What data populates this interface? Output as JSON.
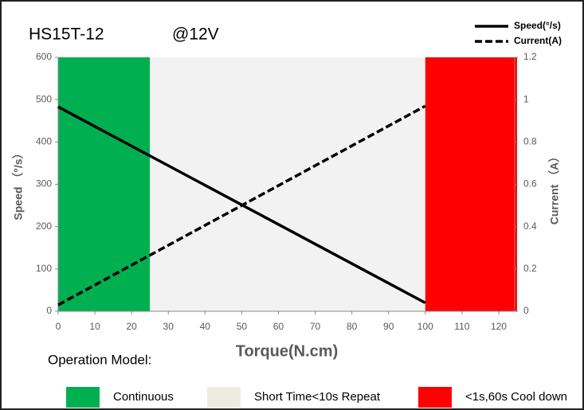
{
  "chart_data": {
    "type": "line",
    "title": "HS15T-12",
    "subtitle": "@12V",
    "x_label": "Torque(N.cm)",
    "y_label": "Speed （°/s）",
    "y2_label": "Current （A）",
    "x": [
      0,
      100
    ],
    "series": [
      {
        "name": "Speed(°/s)",
        "color": "#000000",
        "dashed": false,
        "values": [
          483,
          20
        ]
      },
      {
        "name": "Current(A)",
        "color": "#000000",
        "dashed": true,
        "axis": "y2",
        "values": [
          0.03,
          0.97
        ]
      }
    ],
    "zones_title": "Operation Model:",
    "zones": [
      {
        "name": "Continuous",
        "color": "#00b050",
        "start": 0,
        "end": 25
      },
      {
        "name": "Short Time<10s Repeat",
        "color": "#f2f2f2",
        "legend_color": "#eeece1",
        "start": 25,
        "end": 100
      },
      {
        "name": "<1s,60s Cool down",
        "color": "#ff0000",
        "start": 100,
        "end": 125
      }
    ],
    "xlim": [
      0,
      125
    ],
    "xticks": [
      0,
      10,
      20,
      30,
      40,
      50,
      60,
      70,
      80,
      90,
      100,
      110,
      120
    ],
    "ylim": [
      0,
      600
    ],
    "yticks": [
      0,
      100,
      200,
      300,
      400,
      500,
      600
    ],
    "y2lim": [
      0,
      1.2
    ],
    "y2ticks": [
      0,
      0.2,
      0.4,
      0.6,
      0.8,
      1,
      1.2
    ]
  }
}
